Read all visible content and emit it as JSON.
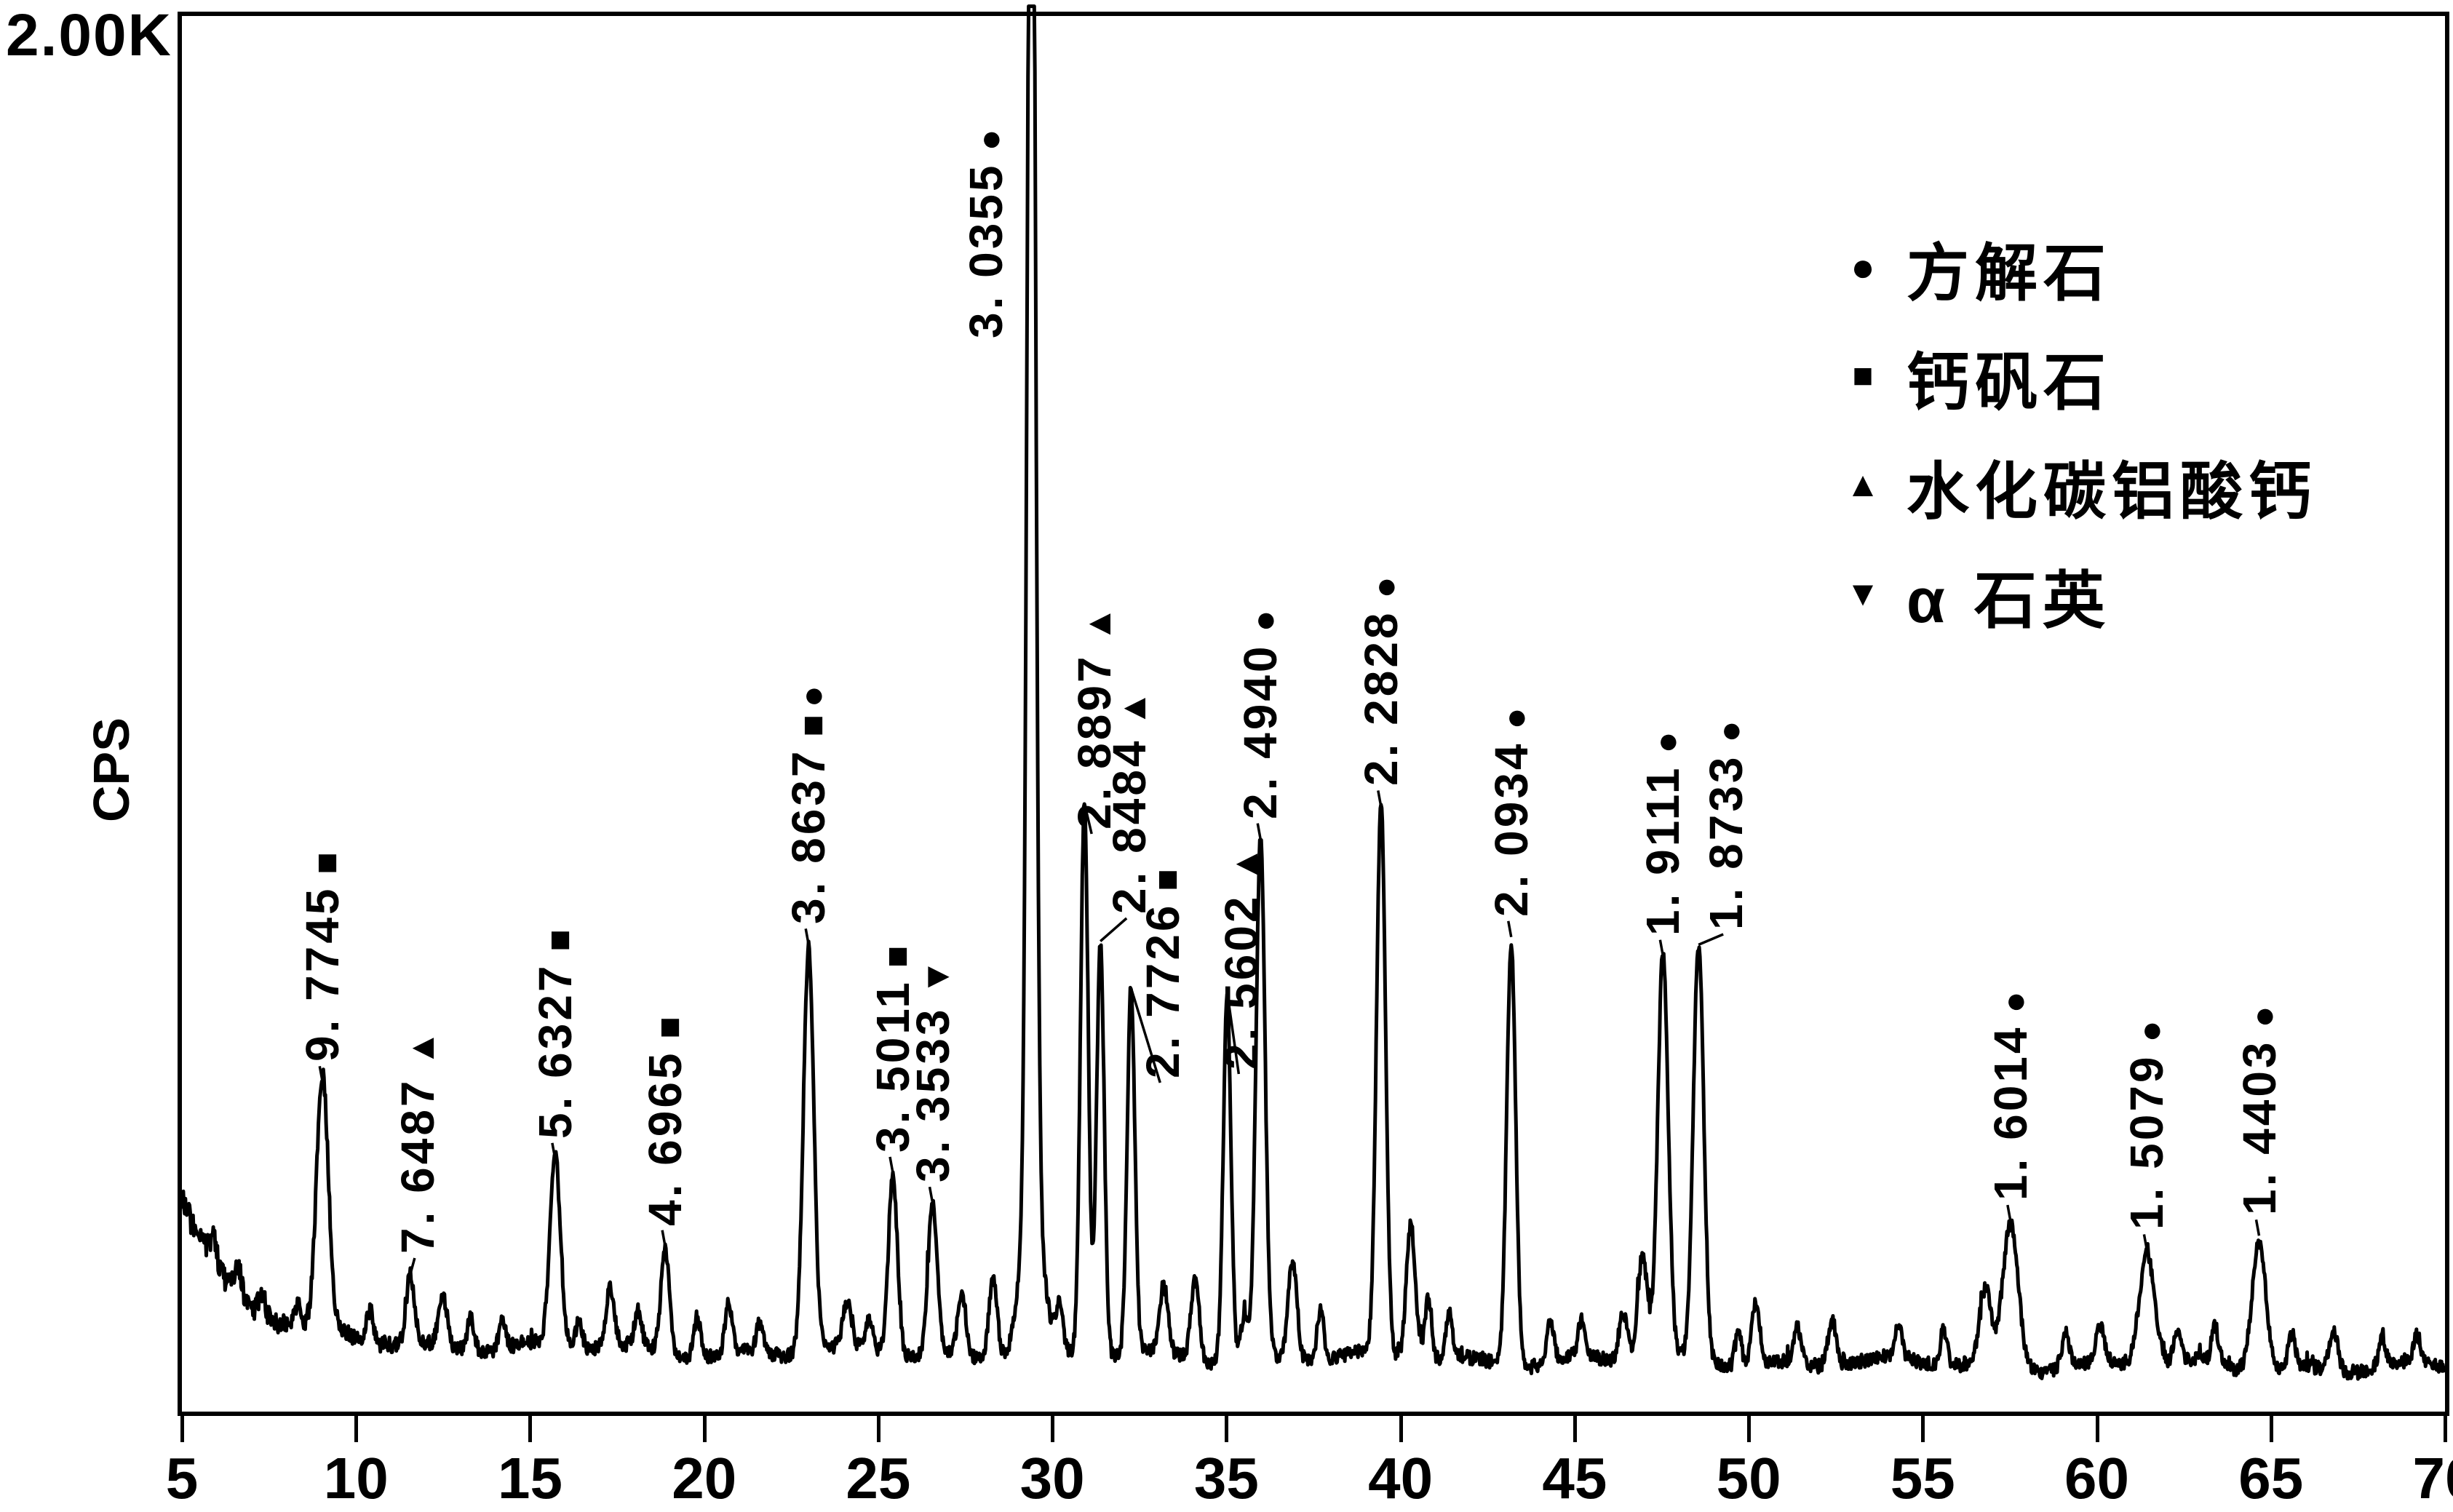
{
  "chart_data": {
    "type": "line",
    "description": "X-ray diffraction (XRD) pattern, intensity in CPS vs diffraction angle, with d-spacing peak labels and mineral phase symbols",
    "x_range": [
      5,
      70
    ],
    "x_ticks": [
      5,
      10,
      15,
      20,
      25,
      30,
      35,
      40,
      45,
      50,
      55,
      60,
      65,
      70
    ],
    "y_range_cps": [
      0,
      2000
    ],
    "y_top_label": "2.00K",
    "ylabel": "CPS",
    "grid": false,
    "legend_position": "upper-right",
    "legend": [
      {
        "symbol": "●",
        "label": "方解石"
      },
      {
        "symbol": "■",
        "label": "钙矾石"
      },
      {
        "symbol": "▲",
        "label": "水化碳铝酸钙"
      },
      {
        "symbol": "▼",
        "label": "α 石英"
      }
    ],
    "peaks": [
      {
        "d": "9. 7745",
        "symbols": "■",
        "two_theta": 9.04,
        "cps": 470,
        "sigma": 0.17
      },
      {
        "d": "7. 6487",
        "symbols": "▲",
        "two_theta": 11.56,
        "cps": 195,
        "sigma": 0.12,
        "label_dx": 10
      },
      {
        "d": "5. 6327",
        "symbols": "■",
        "two_theta": 15.72,
        "cps": 360,
        "sigma": 0.15
      },
      {
        "d": "4. 6965",
        "symbols": "■",
        "two_theta": 18.88,
        "cps": 235,
        "sigma": 0.12
      },
      {
        "d": "3. 8637",
        "symbols": "■●",
        "two_theta": 23.0,
        "cps": 667,
        "sigma": 0.15
      },
      {
        "d": "3. 5011",
        "symbols": "■",
        "two_theta": 25.42,
        "cps": 340,
        "sigma": 0.13
      },
      {
        "d": "3. 3533",
        "symbols": "▼",
        "two_theta": 26.56,
        "cps": 297,
        "sigma": 0.13
      },
      {
        "d": "3. 0355",
        "symbols": "●",
        "two_theta": 29.4,
        "cps": 2000,
        "sigma": 0.11,
        "clipped": true,
        "label_dx": -62,
        "label_y": 465,
        "no_leader": true
      },
      {
        "d": "2. 8897",
        "symbols": "▲",
        "two_theta": 30.92,
        "cps": 870,
        "sigma": 0.11,
        "label_dx": 14,
        "label_y": 1140
      },
      {
        "d": "2. 8484",
        "symbols": "▲",
        "two_theta": 31.38,
        "cps": 672,
        "sigma": 0.11,
        "label_dx": 40,
        "label_y": 1256
      },
      {
        "d": "2. 7726",
        "symbols": "■",
        "two_theta": 32.26,
        "cps": 605,
        "sigma": 0.11,
        "label_dx": 44,
        "label_y": 1482
      },
      {
        "d": "2. 5602",
        "symbols": "▲",
        "two_theta": 35.02,
        "cps": 600,
        "sigma": 0.11,
        "label_dx": 20,
        "label_y": 1470
      },
      {
        "d": "2. 4940",
        "symbols": "●",
        "two_theta": 35.98,
        "cps": 818,
        "sigma": 0.13
      },
      {
        "d": "2. 2828",
        "symbols": "●",
        "two_theta": 39.44,
        "cps": 865,
        "sigma": 0.13
      },
      {
        "d": "2. 0934",
        "symbols": "●",
        "two_theta": 43.18,
        "cps": 678,
        "sigma": 0.13
      },
      {
        "d": "1. 9111",
        "symbols": "●",
        "two_theta": 47.54,
        "cps": 651,
        "sigma": 0.15
      },
      {
        "d": "1. 8733",
        "symbols": "●",
        "two_theta": 48.56,
        "cps": 667,
        "sigma": 0.15,
        "label_dx": 38,
        "label_y": 1278
      },
      {
        "d": "1. 6014",
        "symbols": "●",
        "two_theta": 57.52,
        "cps": 271,
        "sigma": 0.22
      },
      {
        "d": "1. 5079",
        "symbols": "●",
        "two_theta": 61.44,
        "cps": 229,
        "sigma": 0.22
      },
      {
        "d": "1. 4403",
        "symbols": "●",
        "two_theta": 64.66,
        "cps": 250,
        "sigma": 0.2
      }
    ],
    "minor_peaks": [
      [
        5.9,
        40,
        0.1
      ],
      [
        6.6,
        45,
        0.1
      ],
      [
        7.3,
        35,
        0.1
      ],
      [
        8.3,
        30,
        0.1
      ],
      [
        10.4,
        45,
        0.1
      ],
      [
        12.5,
        70,
        0.12
      ],
      [
        13.3,
        50,
        0.1
      ],
      [
        14.2,
        38,
        0.1
      ],
      [
        16.4,
        38,
        0.1
      ],
      [
        17.3,
        85,
        0.12
      ],
      [
        18.1,
        48,
        0.1
      ],
      [
        19.8,
        58,
        0.1
      ],
      [
        20.7,
        68,
        0.1
      ],
      [
        21.6,
        42,
        0.1
      ],
      [
        24.1,
        62,
        0.12
      ],
      [
        24.75,
        45,
        0.1
      ],
      [
        27.4,
        88,
        0.12
      ],
      [
        28.3,
        115,
        0.12
      ],
      [
        29.4,
        250,
        0.3
      ],
      [
        30.2,
        62,
        0.1
      ],
      [
        33.2,
        95,
        0.12
      ],
      [
        34.1,
        115,
        0.12
      ],
      [
        35.5,
        60,
        0.1
      ],
      [
        36.9,
        140,
        0.13
      ],
      [
        37.7,
        72,
        0.1
      ],
      [
        40.3,
        195,
        0.13
      ],
      [
        40.8,
        90,
        0.1
      ],
      [
        41.4,
        62,
        0.1
      ],
      [
        44.3,
        58,
        0.1
      ],
      [
        45.2,
        52,
        0.1
      ],
      [
        46.4,
        72,
        0.12
      ],
      [
        46.95,
        150,
        0.14
      ],
      [
        49.7,
        48,
        0.1
      ],
      [
        50.2,
        88,
        0.12
      ],
      [
        51.4,
        52,
        0.1
      ],
      [
        52.4,
        68,
        0.12
      ],
      [
        54.3,
        48,
        0.1
      ],
      [
        55.6,
        52,
        0.1
      ],
      [
        56.8,
        105,
        0.16
      ],
      [
        59.1,
        48,
        0.12
      ],
      [
        60.1,
        52,
        0.12
      ],
      [
        62.3,
        48,
        0.1
      ],
      [
        63.4,
        52,
        0.1
      ],
      [
        65.6,
        48,
        0.1
      ],
      [
        66.8,
        58,
        0.12
      ],
      [
        68.2,
        42,
        0.1
      ],
      [
        69.2,
        38,
        0.1
      ]
    ],
    "background": {
      "base": 62,
      "slope": 0.45,
      "hump_amp": 200,
      "hump_tau": 1.2,
      "hump2_amp": 30,
      "hump2_tau": 6,
      "noise": 10,
      "noise_left_extra": 12
    }
  }
}
